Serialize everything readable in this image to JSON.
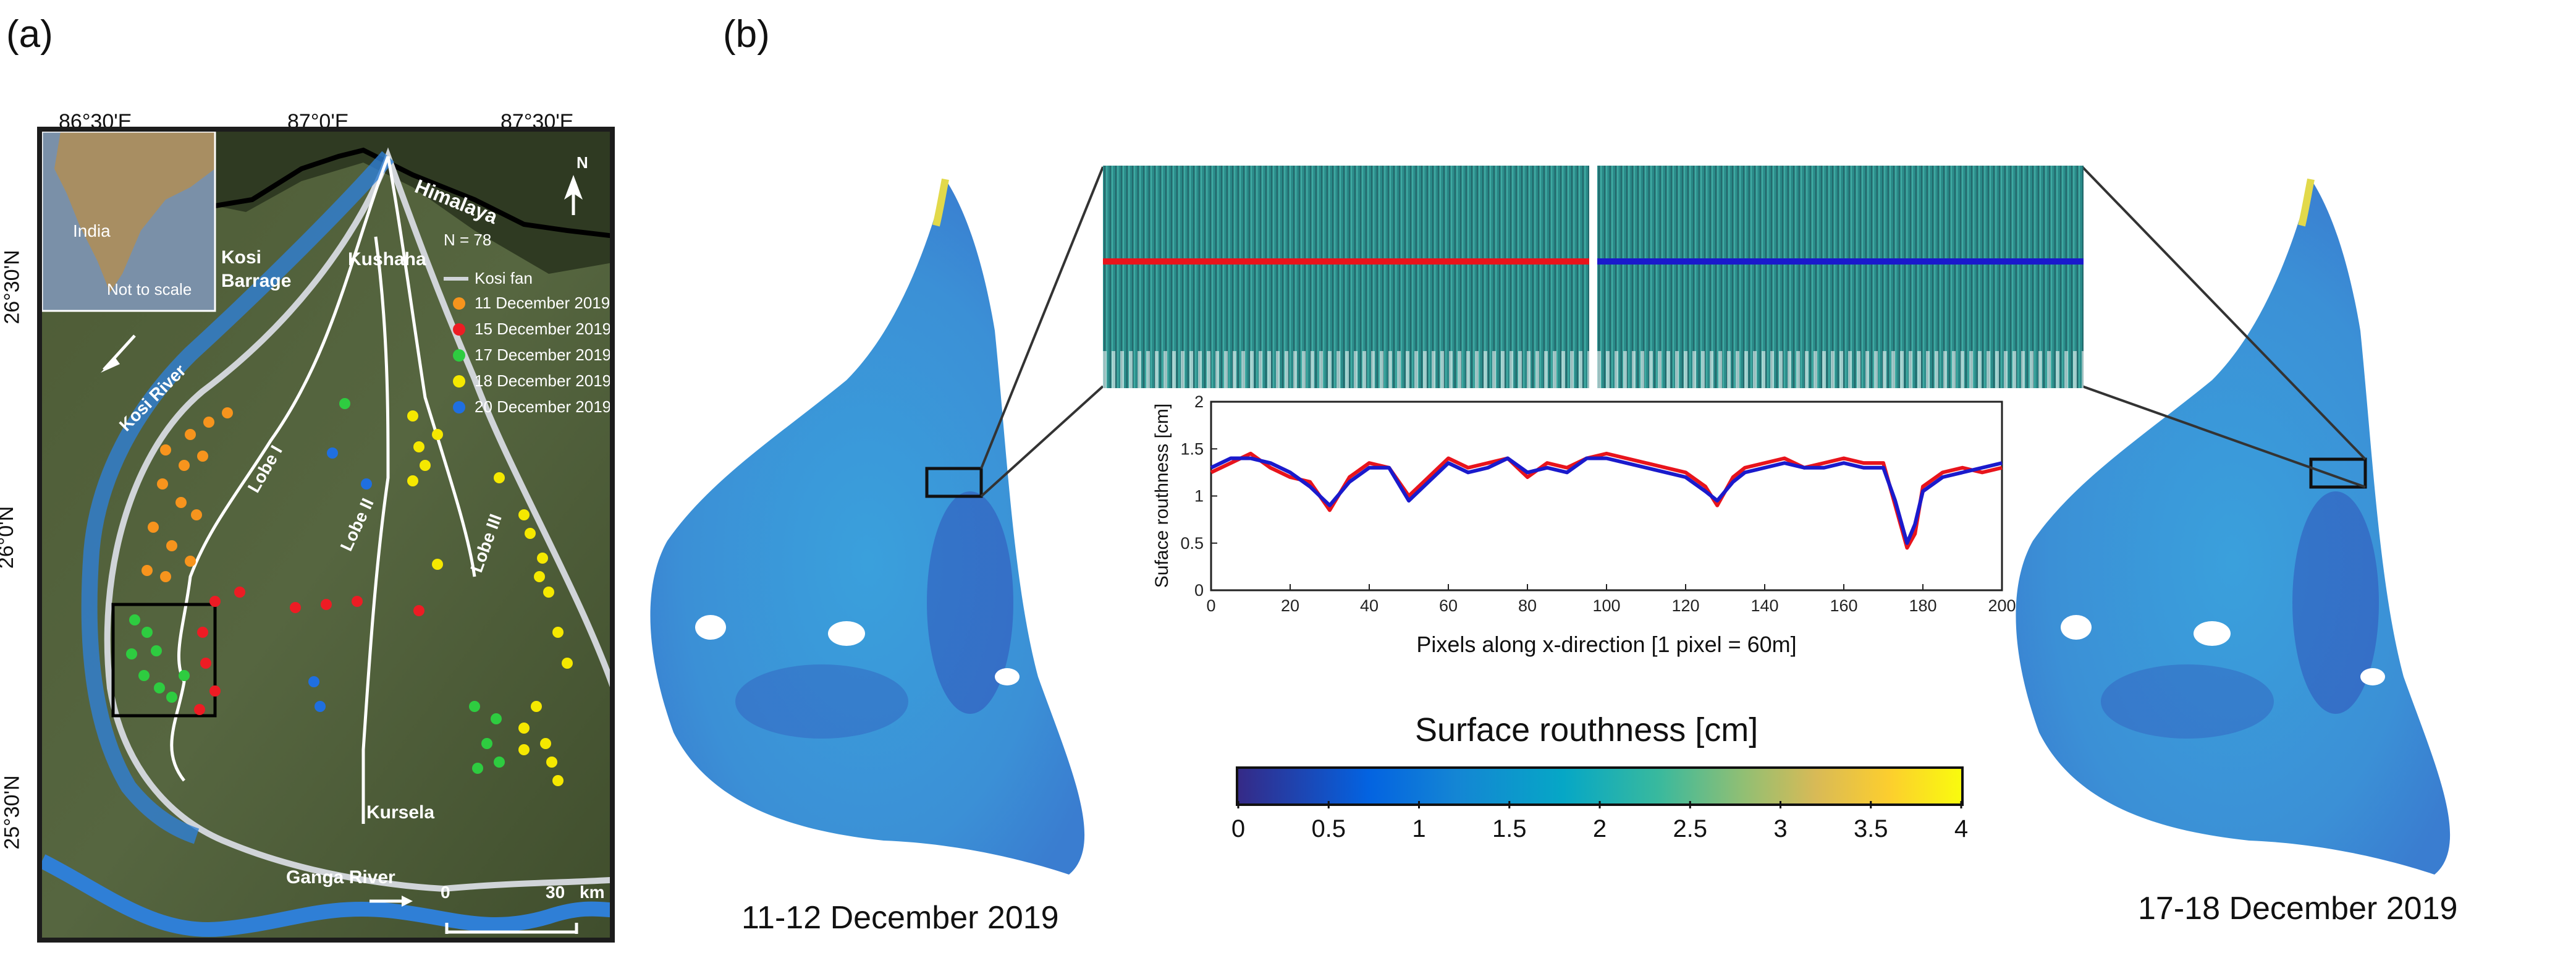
{
  "panels": {
    "a_label": "(a)",
    "b_label": "(b)"
  },
  "map": {
    "lon_labels": [
      "86°30'E",
      "87°0'E",
      "87°30'E"
    ],
    "lat_labels": [
      "26°30'N",
      "26°0'N",
      "25°30'N"
    ],
    "inset": {
      "country": "India",
      "note": "Not to scale"
    },
    "north_label": "N",
    "places": {
      "himalaya": "Himalaya",
      "kushaha": "Kushaha",
      "kosi_barrage": "Kosi\nBarrage",
      "kosi_river": "Kosi River",
      "kursela": "Kursela",
      "ganga_river": "Ganga River",
      "lobe1": "Lobe I",
      "lobe2": "Lobe II",
      "lobe3": "Lobe III"
    },
    "legend": {
      "n": "N = 78",
      "fan": "Kosi fan",
      "items": [
        {
          "label": "11 December 2019",
          "color": "#f7941d"
        },
        {
          "label": "15 December 2019",
          "color": "#ed1c24"
        },
        {
          "label": "17 December 2019",
          "color": "#2ecc40"
        },
        {
          "label": "18 December 2019",
          "color": "#f5e800"
        },
        {
          "label": "20 December 2019",
          "color": "#1f6fe0"
        }
      ]
    },
    "scale": {
      "zero": "0",
      "max": "30",
      "unit": "km"
    }
  },
  "fans": {
    "left_date": "11-12 December 2019",
    "right_date": "17-18 December 2019"
  },
  "colorbar": {
    "title": "Surface routhness [cm]",
    "ticks": [
      "0",
      "0.5",
      "1",
      "1.5",
      "2",
      "2.5",
      "3",
      "3.5",
      "4"
    ],
    "range": [
      0,
      4
    ],
    "colormap": "parula"
  },
  "chart_data": {
    "type": "line",
    "xlabel": "Pixels along x-direction [1 pixel = 60m]",
    "ylabel": "Suface routhness [cm]",
    "xlim": [
      0,
      200
    ],
    "ylim": [
      0,
      2
    ],
    "xticks": [
      0,
      20,
      40,
      60,
      80,
      100,
      120,
      140,
      160,
      180,
      200
    ],
    "yticks": [
      0,
      0.5,
      1,
      1.5,
      2
    ],
    "x": [
      0,
      5,
      10,
      15,
      20,
      25,
      30,
      35,
      40,
      45,
      50,
      55,
      60,
      65,
      70,
      75,
      80,
      85,
      90,
      95,
      100,
      105,
      110,
      115,
      120,
      125,
      128,
      132,
      135,
      140,
      145,
      150,
      155,
      160,
      165,
      170,
      173,
      176,
      178,
      180,
      185,
      190,
      195,
      200
    ],
    "series": [
      {
        "color": "#e8141c",
        "values": [
          1.25,
          1.35,
          1.45,
          1.3,
          1.2,
          1.15,
          0.85,
          1.2,
          1.35,
          1.3,
          1.0,
          1.2,
          1.4,
          1.3,
          1.35,
          1.4,
          1.2,
          1.35,
          1.3,
          1.4,
          1.45,
          1.4,
          1.35,
          1.3,
          1.25,
          1.1,
          0.9,
          1.2,
          1.3,
          1.35,
          1.4,
          1.3,
          1.35,
          1.4,
          1.35,
          1.35,
          0.9,
          0.45,
          0.6,
          1.1,
          1.25,
          1.3,
          1.25,
          1.3
        ]
      },
      {
        "color": "#1a1acc",
        "values": [
          1.3,
          1.4,
          1.4,
          1.35,
          1.25,
          1.1,
          0.9,
          1.15,
          1.3,
          1.3,
          0.95,
          1.15,
          1.35,
          1.25,
          1.3,
          1.4,
          1.25,
          1.3,
          1.25,
          1.4,
          1.4,
          1.35,
          1.3,
          1.25,
          1.2,
          1.05,
          0.95,
          1.15,
          1.25,
          1.3,
          1.35,
          1.3,
          1.3,
          1.35,
          1.3,
          1.3,
          0.95,
          0.5,
          0.7,
          1.05,
          1.2,
          1.25,
          1.3,
          1.35
        ]
      }
    ]
  }
}
